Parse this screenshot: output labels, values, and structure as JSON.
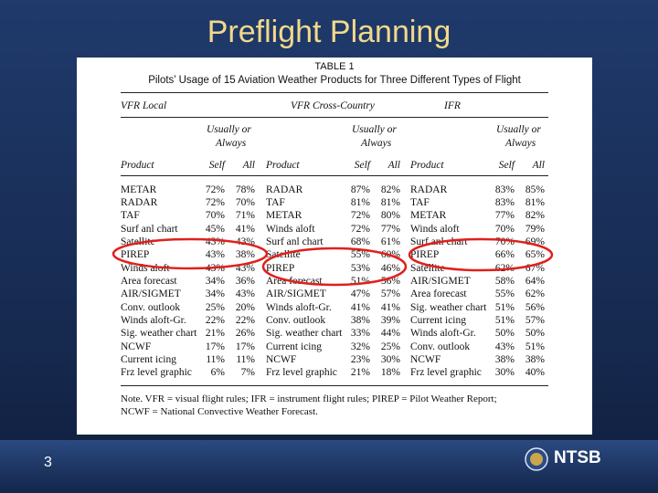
{
  "slide": {
    "title": "Preflight Planning",
    "page_number": "3",
    "logo": "NTSB"
  },
  "table": {
    "label": "TABLE 1",
    "caption": "Pilots’ Usage of 15 Aviation Weather Products for Three Different Types of Flight",
    "groups": [
      "VFR Local",
      "VFR Cross-Country",
      "IFR"
    ],
    "subheader": [
      "Usually or",
      "Always"
    ],
    "columns": [
      "Product",
      "Self",
      "All"
    ],
    "rows": [
      [
        "METAR",
        "72%",
        "78%",
        "RADAR",
        "87%",
        "82%",
        "RADAR",
        "83%",
        "85%"
      ],
      [
        "RADAR",
        "72%",
        "70%",
        "TAF",
        "81%",
        "81%",
        "TAF",
        "83%",
        "81%"
      ],
      [
        "TAF",
        "70%",
        "71%",
        "METAR",
        "72%",
        "80%",
        "METAR",
        "77%",
        "82%"
      ],
      [
        "Surf anl chart",
        "45%",
        "41%",
        "Winds aloft",
        "72%",
        "77%",
        "Winds aloft",
        "70%",
        "79%"
      ],
      [
        "Satellite",
        "43%",
        "43%",
        "Surf anl chart",
        "68%",
        "61%",
        "Surf anl chart",
        "70%",
        "69%"
      ],
      [
        "PIREP",
        "43%",
        "38%",
        "Satellite",
        "55%",
        "60%",
        "PIREP",
        "66%",
        "65%"
      ],
      [
        "Winds aloft",
        "43%",
        "43%",
        "PIREP",
        "53%",
        "46%",
        "Satellite",
        "62%",
        "67%"
      ],
      [
        "Area forecast",
        "34%",
        "36%",
        "Area forecast",
        "51%",
        "56%",
        "AIR/SIGMET",
        "58%",
        "64%"
      ],
      [
        "AIR/SIGMET",
        "34%",
        "43%",
        "AIR/SIGMET",
        "47%",
        "57%",
        "Area forecast",
        "55%",
        "62%"
      ],
      [
        "Conv. outlook",
        "25%",
        "20%",
        "Winds aloft-Gr.",
        "41%",
        "41%",
        "Sig. weather chart",
        "51%",
        "56%"
      ],
      [
        "Winds aloft-Gr.",
        "22%",
        "22%",
        "Conv. outlook",
        "38%",
        "39%",
        "Current icing",
        "51%",
        "57%"
      ],
      [
        "Sig. weather chart",
        "21%",
        "26%",
        "Sig. weather chart",
        "33%",
        "44%",
        "Winds aloft-Gr.",
        "50%",
        "50%"
      ],
      [
        "NCWF",
        "17%",
        "17%",
        "Current icing",
        "32%",
        "25%",
        "Conv. outlook",
        "43%",
        "51%"
      ],
      [
        "Current icing",
        "11%",
        "11%",
        "NCWF",
        "23%",
        "30%",
        "NCWF",
        "38%",
        "38%"
      ],
      [
        "Frz level graphic",
        "6%",
        "7%",
        "Frz level graphic",
        "21%",
        "18%",
        "Frz level graphic",
        "30%",
        "40%"
      ]
    ],
    "note": [
      "Note. VFR = visual flight rules; IFR = instrument flight rules; PIREP = Pilot Weather Report;",
      "NCWF = National Convective Weather Forecast."
    ]
  }
}
